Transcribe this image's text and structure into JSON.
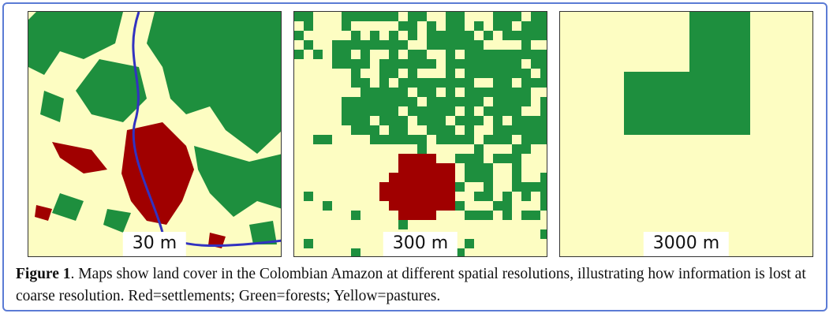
{
  "panels": [
    {
      "label": "30 m"
    },
    {
      "label": "300 m"
    },
    {
      "label": "3000 m"
    }
  ],
  "caption": {
    "label": "Figure 1",
    "text": ". Maps show land cover in the Colombian Amazon at different spatial resolutions, illustrating how information is lost at coarse resolution. Red=settlements; Green=forests; Yellow=pastures."
  }
}
